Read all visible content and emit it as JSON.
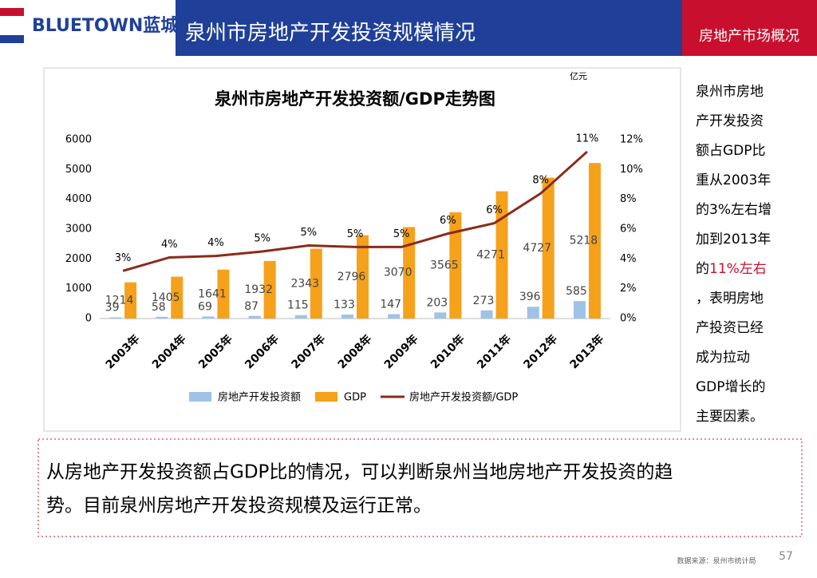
{
  "header": {
    "logo": "BLUETOWN蓝城",
    "title": "泉州市房地产开发投资规模情况",
    "tag": "房地产市场概况"
  },
  "chart_data": {
    "type": "bar",
    "title": "泉州市房地产开发投资额/GDP走势图",
    "unit": "亿元",
    "categories": [
      "2003年",
      "2004年",
      "2005年",
      "2006年",
      "2007年",
      "2008年",
      "2009年",
      "2010年",
      "2011年",
      "2012年",
      "2013年"
    ],
    "series": [
      {
        "name": "房地产开发投资额",
        "color": "#9dc3e6",
        "type": "bar",
        "values": [
          39,
          58,
          69,
          87,
          115,
          133,
          147,
          203,
          273,
          396,
          585
        ]
      },
      {
        "name": "GDP",
        "color": "#f5a11c",
        "type": "bar",
        "values": [
          1214,
          1405,
          1641,
          1932,
          2343,
          2796,
          3070,
          3565,
          4271,
          4727,
          5218
        ]
      },
      {
        "name": "房地产开发投资额/GDP",
        "color": "#8b2a1a",
        "type": "line",
        "axis": "y2",
        "values": [
          3.2,
          4.1,
          4.2,
          4.5,
          4.9,
          4.8,
          4.8,
          5.7,
          6.4,
          8.4,
          11.2
        ],
        "value_labels": [
          "3%",
          "4%",
          "4%",
          "5%",
          "5%",
          "5%",
          "5%",
          "6%",
          "6%",
          "8%",
          "11%"
        ]
      }
    ],
    "ylim": [
      0,
      6000
    ],
    "yticks": [
      0,
      1000,
      2000,
      3000,
      4000,
      5000,
      6000
    ],
    "y2lim": [
      0,
      12
    ],
    "y2ticks": [
      {
        "value": 0,
        "label": "0%"
      },
      {
        "value": 2,
        "label": "2%"
      },
      {
        "value": 4,
        "label": "4%"
      },
      {
        "value": 6,
        "label": "6%"
      },
      {
        "value": 8,
        "label": "8%"
      },
      {
        "value": 10,
        "label": "10%"
      },
      {
        "value": 12,
        "label": "12%"
      }
    ],
    "legend": "bottom"
  },
  "side_text": {
    "lines": [
      "泉州市房地",
      "产开发投资",
      "额占GDP比",
      "重从2003年",
      "的3%左右增",
      "加到2013年",
      "的",
      "，表明房地",
      "产投资已经",
      "成为拉动",
      "GDP增长的",
      "主要因素。"
    ],
    "highlight": "11%左右"
  },
  "summary": [
    "从房地产开发投资额占GDP比的情况，可以判断泉州当地房地产开发投资的趋",
    "势。目前泉州房地产开发投资规模及运行正常。"
  ],
  "footer": {
    "source": "数据来源：泉州市统计局",
    "page": "57"
  }
}
